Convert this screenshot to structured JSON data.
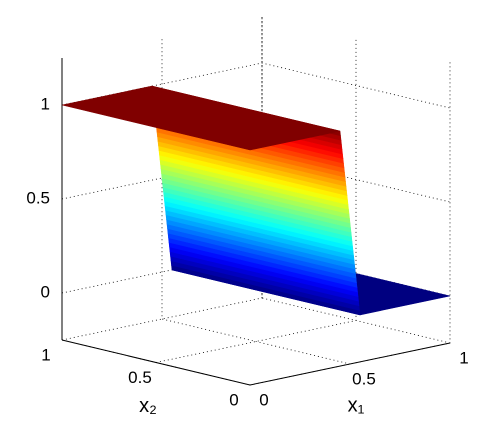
{
  "chart_data": {
    "type": "surface",
    "x1": [
      0,
      0.45,
      0.55,
      1
    ],
    "x2": [
      0,
      1
    ],
    "z": [
      [
        1,
        1
      ],
      [
        1,
        1
      ],
      [
        0,
        0
      ],
      [
        0,
        0
      ]
    ],
    "xlabel": "x₁",
    "ylabel": "x₂",
    "xlim": [
      0,
      1
    ],
    "ylim": [
      0,
      1
    ],
    "zlim": [
      -0.25,
      1.25
    ],
    "xticks": [
      0,
      0.5,
      1
    ],
    "yticks": [
      0,
      0.5,
      1
    ],
    "zticks": [
      0,
      0.5,
      1
    ],
    "colormap": "jet",
    "grid": true
  }
}
